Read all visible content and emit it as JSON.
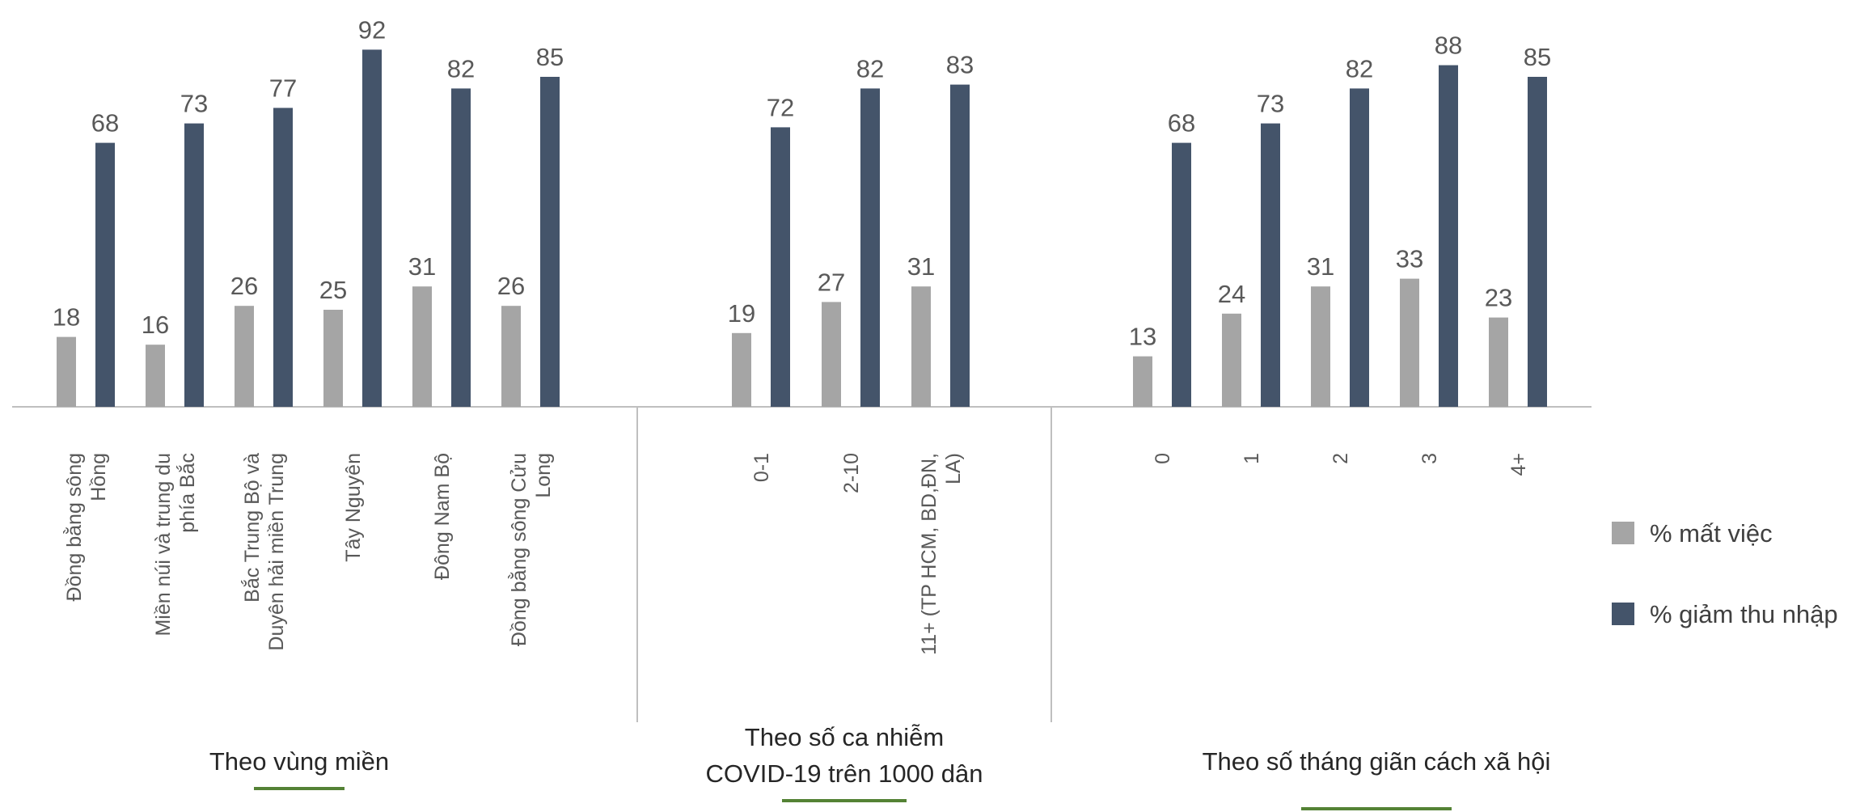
{
  "chart_data": {
    "type": "bar",
    "colors": {
      "mat_viec": "#A5A5A5",
      "giam_thu_nhap": "#44546A",
      "underline": "#548235",
      "axis": "#BFBFBF"
    },
    "legend": {
      "placement": "right",
      "items": [
        {
          "name": "% mất việc",
          "color": "#A5A5A5"
        },
        {
          "name": "% giảm thu nhập",
          "color": "#44546A"
        }
      ]
    },
    "ylim": [
      0,
      100
    ],
    "grid": false,
    "series_names": [
      "% mất việc",
      "% giảm thu nhập"
    ],
    "groups": [
      {
        "title_lines": [
          "Theo vùng miền"
        ],
        "categories": [
          [
            "Đồng bằng sông",
            "Hồng"
          ],
          [
            "Miền núi và trung du",
            "phía Bắc"
          ],
          [
            "Bắc Trung Bộ và",
            "Duyên hải miền Trung"
          ],
          [
            "Tây Nguyên"
          ],
          [
            "Đông Nam Bộ"
          ],
          [
            "Đồng bằng sông Cửu",
            "Long"
          ]
        ],
        "mat_viec": [
          18,
          16,
          26,
          25,
          31,
          26
        ],
        "giam_thu_nhap": [
          68,
          73,
          77,
          92,
          82,
          85
        ]
      },
      {
        "title_lines": [
          "Theo số ca nhiễm",
          "COVID-19 trên 1000 dân"
        ],
        "categories": [
          [
            "0-1"
          ],
          [
            "2-10"
          ],
          [
            "11+ (TP HCM, BD,ĐN,",
            "LA)"
          ]
        ],
        "mat_viec": [
          19,
          27,
          31
        ],
        "giam_thu_nhap": [
          72,
          82,
          83
        ]
      },
      {
        "title_lines": [
          "Theo số tháng giãn cách xã hội"
        ],
        "categories": [
          [
            "0"
          ],
          [
            "1"
          ],
          [
            "2"
          ],
          [
            "3"
          ],
          [
            "4+"
          ]
        ],
        "mat_viec": [
          13,
          24,
          31,
          33,
          23
        ],
        "giam_thu_nhap": [
          68,
          73,
          82,
          88,
          85
        ]
      }
    ]
  }
}
